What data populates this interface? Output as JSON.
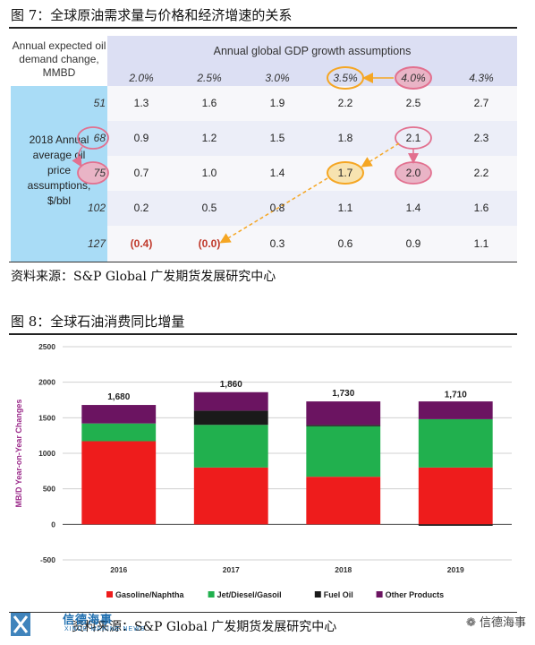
{
  "figure7": {
    "caption": "图 7：全球原油需求量与价格和经济增速的关系",
    "corner_label": [
      "Annual expected oil",
      "demand change,",
      "MMBD"
    ],
    "gdp_title": "Annual global GDP growth assumptions",
    "row_label": [
      "2018 Annual",
      "average oil",
      "price",
      "assumptions,",
      "$/bbl"
    ],
    "source": "资料来源：S&P Global  广发期货发展研究中心",
    "chart_data": {
      "type": "table",
      "columns": [
        "2.0%",
        "2.5%",
        "3.0%",
        "3.5%",
        "4.0%",
        "4.3%"
      ],
      "rows": [
        "51",
        "68",
        "75",
        "102",
        "127"
      ],
      "values": [
        [
          "1.3",
          "1.6",
          "1.9",
          "2.2",
          "2.5",
          "2.7"
        ],
        [
          "0.9",
          "1.2",
          "1.5",
          "1.8",
          "2.1",
          "2.3"
        ],
        [
          "0.7",
          "1.0",
          "1.4",
          "1.7",
          "2.0",
          "2.2"
        ],
        [
          "0.2",
          "0.5",
          "0.8",
          "1.1",
          "1.4",
          "1.6"
        ],
        [
          "(0.4)",
          "(0.0)",
          "0.3",
          "0.6",
          "0.9",
          "1.1"
        ]
      ],
      "highlight_colors": {
        "pink": "#e2708f",
        "orange": "#f5a623",
        "pink_fill": "#e9b4c6",
        "orange_fill": "#f7e3b0"
      }
    }
  },
  "figure8": {
    "caption": "图 8：全球石油消费同比增量",
    "source": "资料来源：S&P Global  广发期货发展研究中心",
    "chart_data": {
      "type": "bar",
      "stacked": true,
      "categories": [
        "2016",
        "2017",
        "2018",
        "2019"
      ],
      "series": [
        {
          "name": "Gasoline/Naphtha",
          "color": "#ee1c1c",
          "values": [
            1170,
            800,
            670,
            800
          ]
        },
        {
          "name": "Jet/Diesel/Gasoil",
          "color": "#21b04e",
          "values": [
            250,
            600,
            710,
            680
          ]
        },
        {
          "name": "Fuel Oil",
          "color": "#1a1a1a",
          "values": [
            0,
            200,
            20,
            -20
          ]
        },
        {
          "name": "Other Products",
          "color": "#6b1461",
          "values": [
            260,
            260,
            330,
            250
          ]
        }
      ],
      "totals": [
        "1,680",
        "1,860",
        "1,730",
        "1,710"
      ],
      "total_values": [
        1680,
        1860,
        1730,
        1710
      ],
      "ylabel": "MB/D Year-on-Year Changes",
      "ylim": [
        -500,
        2500
      ],
      "yticks": [
        "-500",
        "0",
        "500",
        "1000",
        "1500",
        "2000",
        "2500"
      ],
      "grid": true,
      "legend_position": "bottom"
    }
  },
  "watermark": {
    "left_text": "信德海事",
    "left_sub": "XINDE MARINE NEWS",
    "right_text": "信德海事"
  }
}
